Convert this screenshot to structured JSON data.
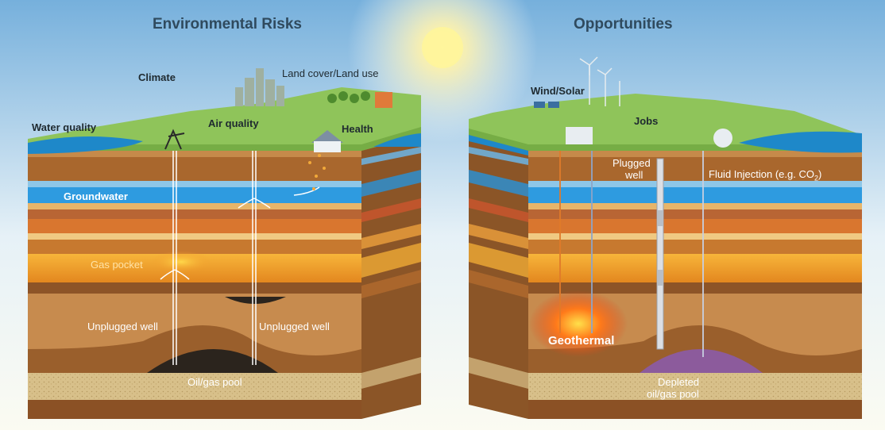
{
  "colors": {
    "sky_top": "#7eb8e0",
    "sky_bottom": "#fbfbf4",
    "grass": "#8fc45a",
    "water": "#1e88c9",
    "groundwater": "#2e9be0",
    "layer_orange": "#d9762f",
    "layer_yellow": "#f2b94a",
    "layer_brown": "#a9672d",
    "geothermal": "#ff6a1a",
    "pool_dark": "#2b241d",
    "pool_purple": "#8a5bb0"
  },
  "risks": {
    "title": "Environmental Risks",
    "climate": "Climate",
    "land": "Land cover/Land use",
    "water_quality": "Water quality",
    "air_quality": "Air quality",
    "health": "Health",
    "groundwater": "Groundwater",
    "gas_pocket": "Gas pocket",
    "unplugged_well_1": "Unplugged well",
    "unplugged_well_2": "Unplugged well",
    "oil_gas_pool": "Oil/gas pool"
  },
  "opportunities": {
    "title": "Opportunities",
    "wind_solar": "Wind/Solar",
    "jobs": "Jobs",
    "plugged_well_1": "Plugged",
    "plugged_well_2": "well",
    "fluid_injection": "Fluid Injection (e.g. CO",
    "fluid_injection_sub": "2",
    "fluid_injection_close": ")",
    "geothermal": "Geothermal",
    "depleted_1": "Depleted",
    "depleted_2": "oil/gas pool"
  }
}
